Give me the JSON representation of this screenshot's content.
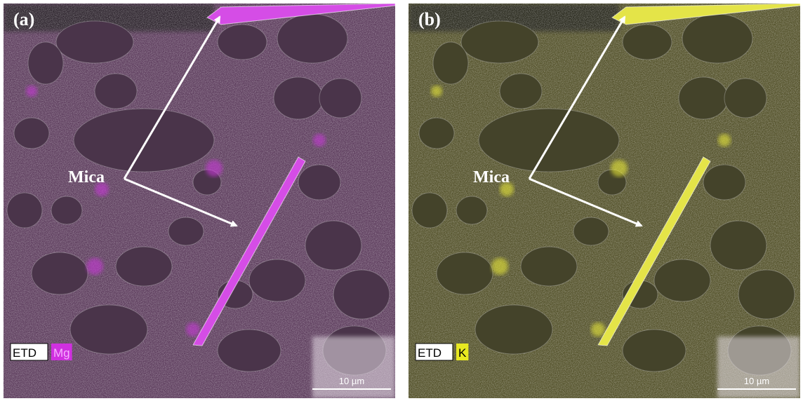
{
  "panels": [
    {
      "label": "(a)",
      "annotation": "Mica",
      "detector": "ETD",
      "element": "Mg",
      "scale_bar": "10 µm"
    },
    {
      "label": "(b)",
      "annotation": "Mica",
      "detector": "ETD",
      "element": "K",
      "scale_bar": "10 µm"
    }
  ]
}
